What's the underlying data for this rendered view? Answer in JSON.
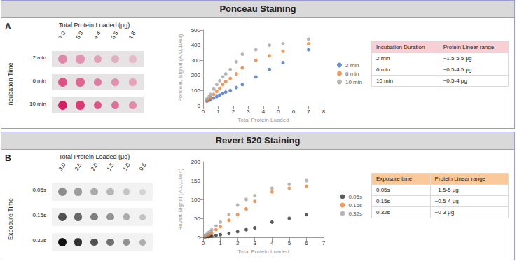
{
  "chart_data": [
    {
      "type": "scatter",
      "x_label": "Total Protein Loaded",
      "y_label": "Ponceau Signal (A.U,10e3)",
      "x": [
        0.25,
        0.4,
        0.5,
        0.7,
        0.9,
        1.1,
        1.3,
        1.5,
        1.8,
        2.2,
        2.6,
        3.5,
        4.4,
        5.3,
        7.0
      ],
      "series": [
        {
          "name": "2 min",
          "color": "#4472c4",
          "values": [
            30,
            35,
            40,
            50,
            60,
            70,
            80,
            90,
            100,
            120,
            140,
            190,
            240,
            285,
            370
          ]
        },
        {
          "name": "6 min",
          "color": "#ed7d31",
          "values": [
            35,
            45,
            55,
            75,
            95,
            115,
            140,
            160,
            180,
            210,
            250,
            300,
            330,
            360,
            410
          ]
        },
        {
          "name": "10 min",
          "color": "#a5a5a5",
          "values": [
            45,
            60,
            75,
            110,
            140,
            165,
            190,
            210,
            240,
            290,
            340,
            370,
            400,
            410,
            440
          ]
        }
      ],
      "xlim": [
        0,
        8
      ],
      "xticks": [
        0,
        1,
        2,
        3,
        4,
        5,
        6,
        7,
        8
      ],
      "ylim": [
        0,
        500
      ],
      "yticks": [
        0,
        100,
        200,
        300,
        400,
        500
      ],
      "grid": false,
      "legend": "right",
      "marker": "circle"
    },
    {
      "type": "scatter",
      "x_label": "Total Protein Loaded",
      "y_label": "Revert Signal (A.U,10e4)",
      "x": [
        0.1,
        0.2,
        0.3,
        0.4,
        0.5,
        0.75,
        1.0,
        1.5,
        2.0,
        2.5,
        3.0,
        4.0,
        5.0,
        6.0
      ],
      "series": [
        {
          "name": "0.05s",
          "color": "#333333",
          "values": [
            1,
            2,
            2,
            3,
            3,
            5,
            7,
            10,
            15,
            20,
            25,
            40,
            50,
            60
          ]
        },
        {
          "name": "0.15s",
          "color": "#ed7d31",
          "values": [
            3,
            5,
            7,
            9,
            12,
            20,
            28,
            45,
            60,
            75,
            95,
            120,
            130,
            135
          ]
        },
        {
          "name": "0.32s",
          "color": "#a5a5a5",
          "values": [
            5,
            8,
            12,
            16,
            20,
            30,
            40,
            60,
            85,
            100,
            110,
            130,
            140,
            150
          ]
        }
      ],
      "xlim": [
        0,
        7
      ],
      "xticks": [
        0,
        1,
        2,
        3,
        4,
        5,
        6,
        7
      ],
      "ylim": [
        0,
        200
      ],
      "yticks": [
        0,
        50,
        100,
        150,
        200
      ],
      "grid": false,
      "legend": "right",
      "marker": "circle"
    }
  ],
  "panels": [
    {
      "letter": "A",
      "header": "Ponceau Staining",
      "blot": {
        "title": "Total Protein Loaded (μg)",
        "row_title": "Incubation Time",
        "columns": [
          "7.0",
          "5.3",
          "4.4",
          "3.5",
          "1.8"
        ],
        "rows": [
          "2 min",
          "6 min",
          "10 min"
        ],
        "color": "#d81b60"
      },
      "table": {
        "header": [
          "Incubation Duration",
          "Protein Linear range"
        ],
        "rows": [
          [
            "2 min",
            "~1.5-5.5 μg"
          ],
          [
            "6 min",
            "~0.5-4.5 μg"
          ],
          [
            "10 min",
            "~0.5-4 μg"
          ]
        ],
        "color": "#f8cfd4"
      }
    },
    {
      "letter": "B",
      "header": "Revert 520 Staining",
      "blot": {
        "title": "Total Protein Loaded (μg)",
        "row_title": "Exposure Time",
        "columns": [
          "3.0",
          "2.5",
          "2.0",
          "1.5",
          "1.0",
          "0.5"
        ],
        "rows": [
          "0.05s",
          "0.15s",
          "0.32s"
        ],
        "color": "#111111"
      },
      "table": {
        "header": [
          "Exposure time",
          "Protein Linear range"
        ],
        "rows": [
          [
            "0.05s",
            "~1.5-5 μg"
          ],
          [
            "0.15s",
            "~0.5-4 μg"
          ],
          [
            "0.32s",
            "~0-3 μg"
          ]
        ],
        "color": "#f9c99a"
      }
    }
  ]
}
